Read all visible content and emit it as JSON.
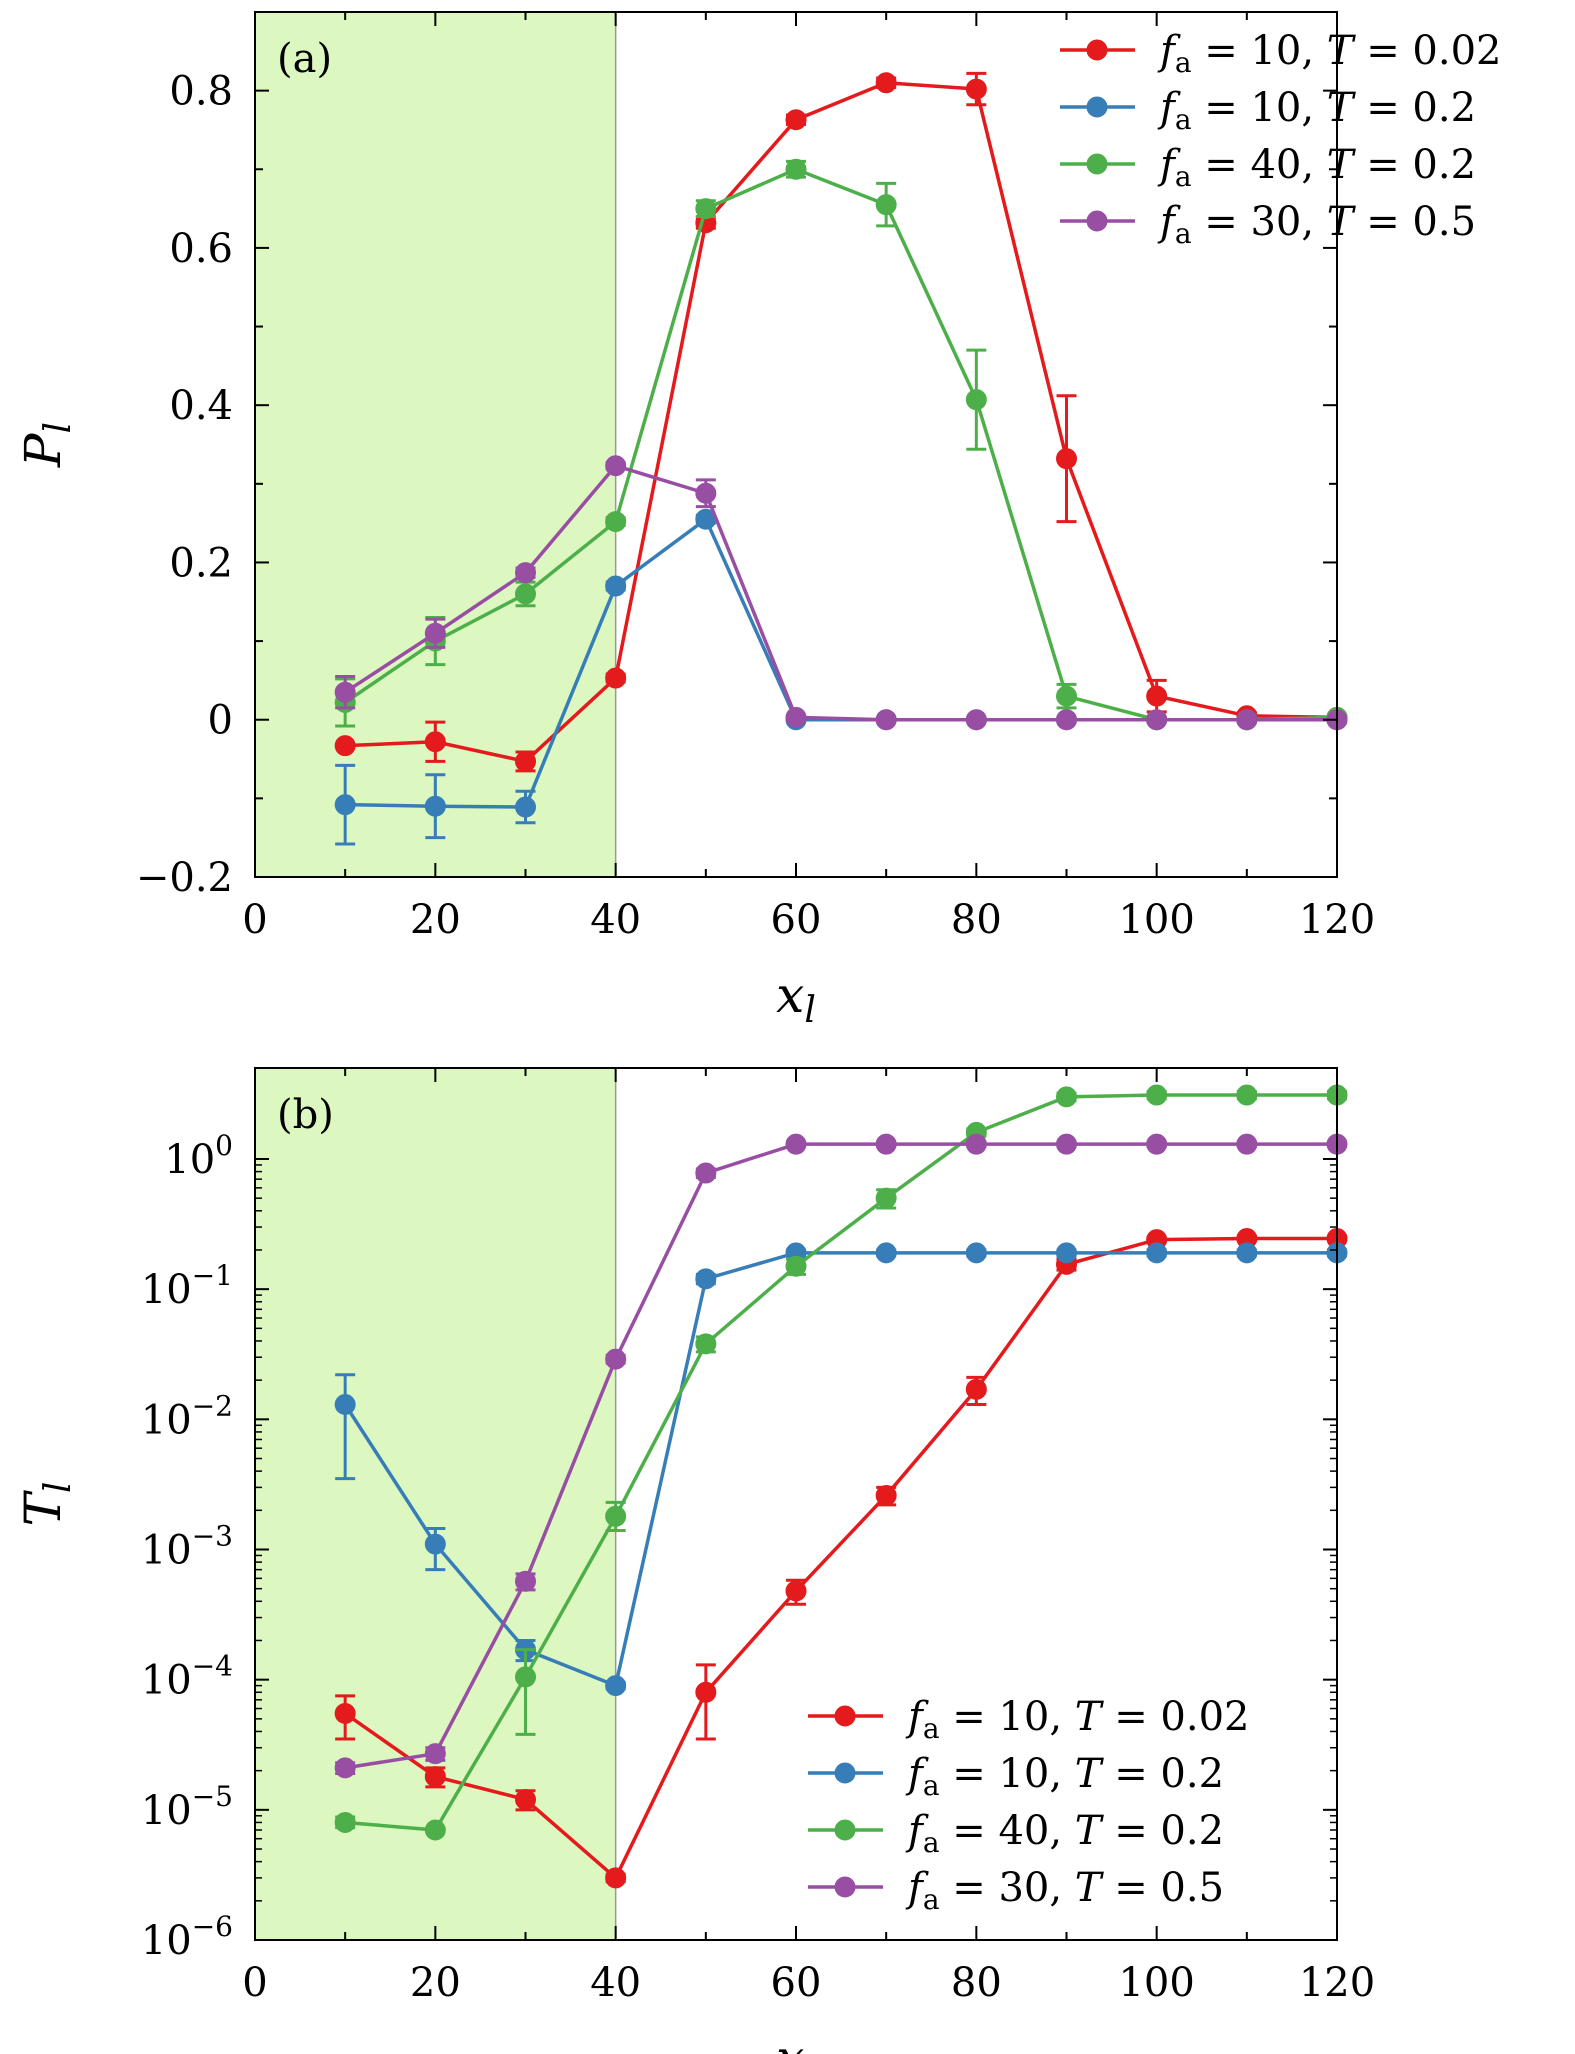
{
  "colors": {
    "red": "#e41a1c",
    "blue": "#377eb8",
    "green": "#4daf4a",
    "purple": "#984ea3",
    "shade": "#dcf7c0"
  },
  "legend_entries": [
    {
      "fa": "10",
      "T": "0.02",
      "color": "#e41a1c"
    },
    {
      "fa": "10",
      "T": "0.2",
      "color": "#377eb8"
    },
    {
      "fa": "40",
      "T": "0.2",
      "color": "#4daf4a"
    },
    {
      "fa": "30",
      "T": "0.5",
      "color": "#984ea3"
    }
  ],
  "chart_data": [
    {
      "type": "line",
      "panel_label": "(a)",
      "xlabel": "x_l",
      "ylabel": "P_l",
      "xlim": [
        0,
        120
      ],
      "ylim": [
        -0.2,
        0.9
      ],
      "xticks": [
        0,
        20,
        40,
        60,
        80,
        100,
        120
      ],
      "yticks": [
        -0.2,
        0,
        0.2,
        0.4,
        0.6,
        0.8
      ],
      "ytick_labels": [
        "−0.2",
        "0",
        "0.2",
        "0.4",
        "0.6",
        "0.8"
      ],
      "shaded_region_x": [
        0,
        40
      ],
      "legend_position": "top-right",
      "x": [
        10,
        20,
        30,
        40,
        50,
        60,
        70,
        80,
        90,
        100,
        110,
        120
      ],
      "series": [
        {
          "legend_index": 0,
          "values": [
            -0.033,
            -0.028,
            -0.053,
            0.053,
            0.632,
            0.763,
            0.81,
            0.802,
            0.332,
            0.03,
            0.005,
            0.003
          ],
          "errors": [
            0.0,
            0.025,
            0.012,
            0.005,
            0.007,
            0.006,
            0.006,
            0.02,
            0.08,
            0.02,
            0.004,
            0.003
          ]
        },
        {
          "legend_index": 1,
          "values": [
            -0.108,
            -0.11,
            -0.111,
            0.17,
            0.255,
            0.0,
            0.0,
            0.0,
            0.0,
            0.0,
            0.0,
            0.0
          ],
          "errors": [
            0.05,
            0.04,
            0.02,
            0.005,
            0.005,
            0.002,
            0.002,
            0.002,
            0.002,
            0.002,
            0.002,
            0.002
          ]
        },
        {
          "legend_index": 2,
          "values": [
            0.022,
            0.1,
            0.16,
            0.252,
            0.65,
            0.7,
            0.655,
            0.407,
            0.03,
            0.0,
            0.0,
            0.003
          ],
          "errors": [
            0.03,
            0.03,
            0.015,
            0.005,
            0.01,
            0.01,
            0.027,
            0.063,
            0.015,
            0.003,
            0.003,
            0.003
          ]
        },
        {
          "legend_index": 3,
          "values": [
            0.035,
            0.11,
            0.187,
            0.323,
            0.288,
            0.003,
            0.0,
            0.0,
            0.0,
            0.0,
            0.0,
            0.0
          ],
          "errors": [
            0.02,
            0.018,
            0.006,
            0.004,
            0.017,
            0.002,
            0.002,
            0.002,
            0.002,
            0.002,
            0.002,
            0.002
          ]
        }
      ]
    },
    {
      "type": "line",
      "panel_label": "(b)",
      "xlabel": "x_l",
      "ylabel": "T_l",
      "xlim": [
        0,
        120
      ],
      "ylim": [
        1e-06,
        5
      ],
      "yscale": "log",
      "xticks": [
        0,
        20,
        40,
        60,
        80,
        100,
        120
      ],
      "yticks_exponent": [
        0,
        -1,
        -2,
        -3,
        -4,
        -5,
        -6
      ],
      "shaded_region_x": [
        0,
        40
      ],
      "legend_position": "bottom-right",
      "x": [
        10,
        20,
        30,
        40,
        50,
        60,
        70,
        80,
        90,
        100,
        110,
        120
      ],
      "series": [
        {
          "legend_index": 0,
          "values": [
            5.5e-05,
            1.8e-05,
            1.2e-05,
            3e-06,
            8e-05,
            0.00048,
            0.0026,
            0.017,
            0.155,
            0.24,
            0.245,
            0.245
          ],
          "errors_low": [
            3.5e-05,
            1.5e-05,
            1e-05,
            2.8e-06,
            3.5e-05,
            0.00038,
            0.0022,
            0.013,
            0.14,
            0.23,
            0.235,
            0.235
          ],
          "errors_high": [
            7.5e-05,
            2.1e-05,
            1.4e-05,
            3.2e-06,
            0.00013,
            0.00058,
            0.003,
            0.021,
            0.17,
            0.25,
            0.255,
            0.255
          ]
        },
        {
          "legend_index": 1,
          "values": [
            0.013,
            0.0011,
            0.00017,
            9e-05,
            0.12,
            0.19,
            0.19,
            0.19,
            0.19,
            0.19,
            0.19,
            0.19
          ],
          "errors_low": [
            0.0035,
            0.0007,
            0.00014,
            8.5e-05,
            0.11,
            0.18,
            0.18,
            0.18,
            0.18,
            0.18,
            0.18,
            0.18
          ],
          "errors_high": [
            0.022,
            0.00145,
            0.0002,
            9.5e-05,
            0.13,
            0.2,
            0.2,
            0.2,
            0.2,
            0.2,
            0.2,
            0.2
          ]
        },
        {
          "legend_index": 2,
          "values": [
            8e-06,
            7e-06,
            0.000105,
            0.0018,
            0.038,
            0.15,
            0.5,
            1.6,
            3.0,
            3.1,
            3.1,
            3.1
          ],
          "errors_low": [
            7.3e-06,
            6.8e-06,
            3.8e-05,
            0.0014,
            0.033,
            0.13,
            0.42,
            1.5,
            2.8,
            2.9,
            2.9,
            2.9
          ],
          "errors_high": [
            8.8e-06,
            7.2e-06,
            0.00017,
            0.0023,
            0.043,
            0.17,
            0.58,
            1.7,
            3.2,
            3.3,
            3.3,
            3.3
          ]
        },
        {
          "legend_index": 3,
          "values": [
            2.1e-05,
            2.7e-05,
            0.00057,
            0.029,
            0.78,
            1.3,
            1.3,
            1.3,
            1.3,
            1.3,
            1.3,
            1.3
          ],
          "errors_low": [
            1.9e-05,
            2.4e-05,
            0.00049,
            0.027,
            0.72,
            1.25,
            1.25,
            1.25,
            1.25,
            1.25,
            1.25,
            1.25
          ],
          "errors_high": [
            2.3e-05,
            3e-05,
            0.00065,
            0.031,
            0.84,
            1.35,
            1.35,
            1.35,
            1.35,
            1.35,
            1.35,
            1.35
          ]
        }
      ]
    }
  ]
}
